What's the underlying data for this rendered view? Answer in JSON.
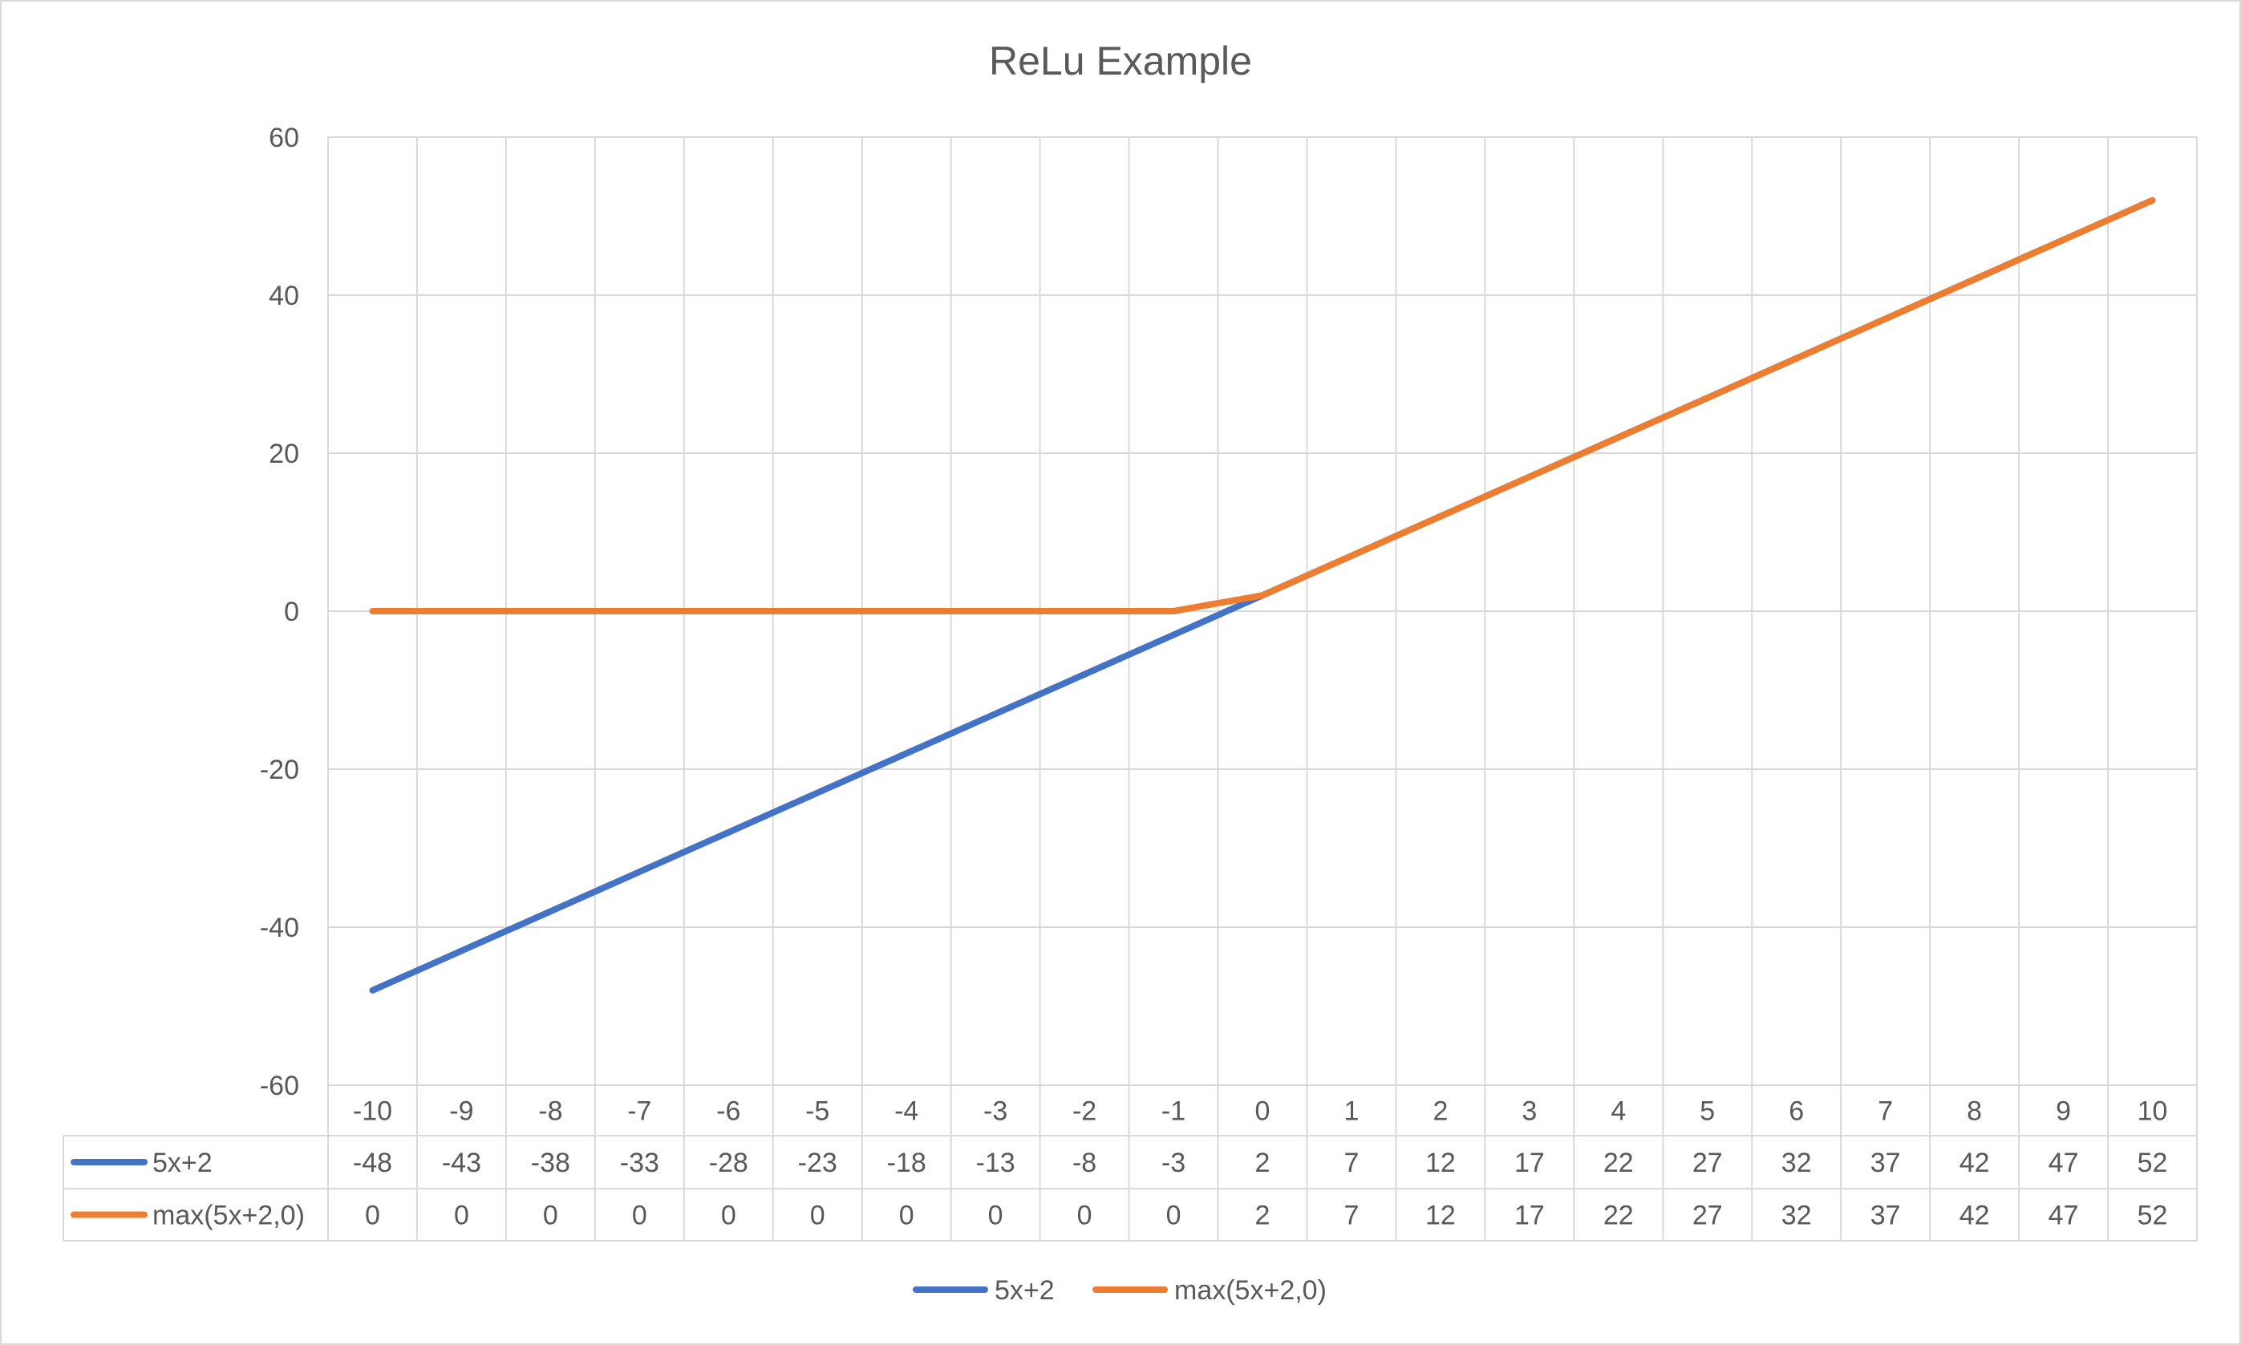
{
  "chart_data": {
    "type": "line",
    "title": "ReLu Example",
    "xlabel": "",
    "ylabel": "",
    "ylim": [
      -60,
      60
    ],
    "y_ticks": [
      60,
      40,
      20,
      0,
      -20,
      -40,
      -60
    ],
    "grid": true,
    "legend": "bottom",
    "data_table": true,
    "categories": [
      "-10",
      "-9",
      "-8",
      "-7",
      "-6",
      "-5",
      "-4",
      "-3",
      "-2",
      "-1",
      "0",
      "1",
      "2",
      "3",
      "4",
      "5",
      "6",
      "7",
      "8",
      "9",
      "10"
    ],
    "series": [
      {
        "name": "5x+2",
        "color": "#4472c4",
        "values": [
          -48,
          -43,
          -38,
          -33,
          -28,
          -23,
          -18,
          -13,
          -8,
          -3,
          2,
          7,
          12,
          17,
          22,
          27,
          32,
          37,
          42,
          47,
          52
        ]
      },
      {
        "name": "max(5x+2,0)",
        "color": "#ed7d31",
        "values": [
          0,
          0,
          0,
          0,
          0,
          0,
          0,
          0,
          0,
          0,
          2,
          7,
          12,
          17,
          22,
          27,
          32,
          37,
          42,
          47,
          52
        ]
      }
    ]
  }
}
